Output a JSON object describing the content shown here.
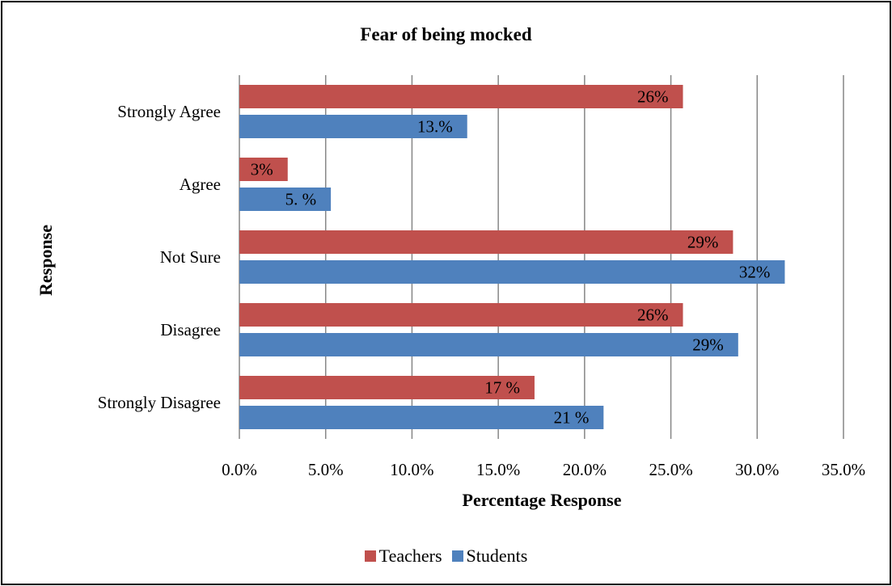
{
  "chart_data": {
    "type": "bar",
    "orientation": "horizontal",
    "title": "Fear of being mocked",
    "xlabel": "Percentage Response",
    "ylabel": "Response",
    "categories": [
      "Strongly Agree",
      "Agree",
      "Not Sure",
      "Disagree",
      "Strongly Disagree"
    ],
    "series": [
      {
        "name": "Teachers",
        "color": "#C0504D",
        "values": [
          25.7,
          2.8,
          28.6,
          25.7,
          17.1
        ],
        "data_labels": [
          "26%",
          "3%",
          "29%",
          "26%",
          "17 %"
        ]
      },
      {
        "name": "Students",
        "color": "#4F81BD",
        "values": [
          13.2,
          5.3,
          31.6,
          28.9,
          21.1
        ],
        "data_labels": [
          "13.%",
          "5. %",
          "32%",
          "29%",
          "21 %"
        ]
      }
    ],
    "xlim": [
      0,
      35
    ],
    "xticks": [
      "0.0%",
      "5.0%",
      "10.0%",
      "15.0%",
      "20.0%",
      "25.0%",
      "30.0%",
      "35.0%"
    ],
    "grid": "vertical",
    "legend": "bottom"
  }
}
